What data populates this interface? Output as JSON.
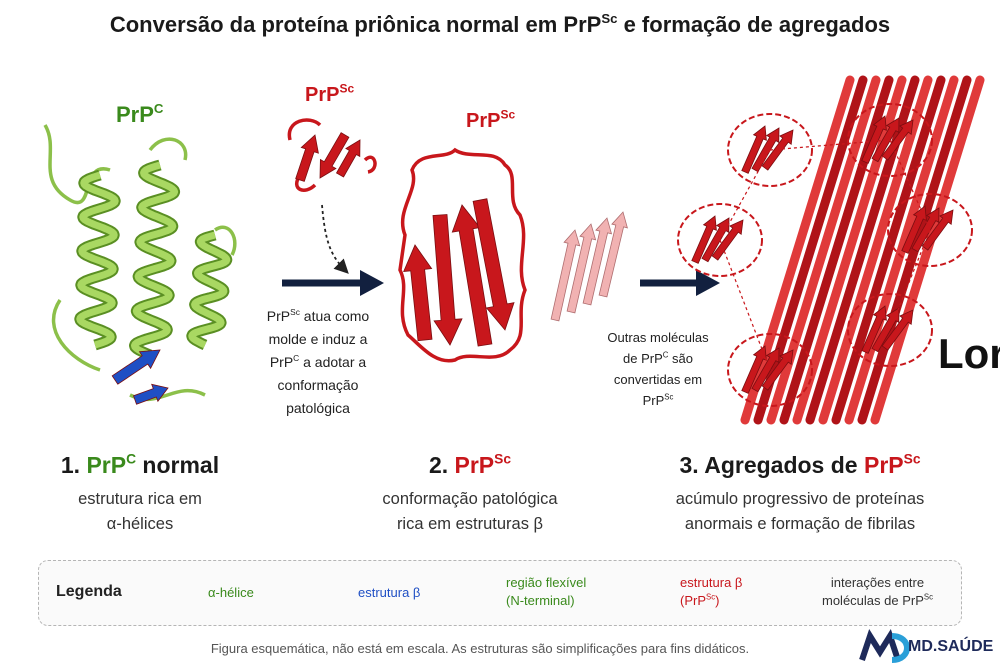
{
  "title": [
    "Conversão da proteína priônica normal em PrP",
    "Sc",
    " e formação de agregados"
  ],
  "labels": {
    "prpc": [
      "PrP",
      "C"
    ],
    "prpsc_small": [
      "PrP",
      "Sc"
    ],
    "prpsc": [
      "PrP",
      "Sc"
    ]
  },
  "note1": [
    [
      "PrP",
      "Sc",
      " atua como"
    ],
    [
      "molde e induz a"
    ],
    [
      "PrP",
      "C",
      " a adotar a"
    ],
    [
      "conformação"
    ],
    [
      "patológica"
    ]
  ],
  "note2": [
    [
      "Outras moléculas"
    ],
    [
      "de PrP",
      "C",
      " são"
    ],
    [
      "convertidas em"
    ],
    [
      "PrP",
      "Sc"
    ]
  ],
  "watermark": "Lore",
  "steps": [
    {
      "number": "1.",
      "name": [
        "PrP",
        "C",
        " normal"
      ],
      "description": [
        "estrutura rica em",
        "α-hélices"
      ]
    },
    {
      "number": "2.",
      "name": [
        "PrP",
        "Sc"
      ],
      "description": [
        "conformação patológica",
        "rica em estruturas β"
      ]
    },
    {
      "number": "3.",
      "name": [
        "Agregados de ",
        "PrP",
        "Sc"
      ],
      "description": [
        "acúmulo progressivo de proteínas",
        "anormais e formação de fibrilas"
      ]
    }
  ],
  "legend": {
    "title": "Legenda",
    "items": [
      [
        [
          "α-hélice"
        ]
      ],
      [
        [
          "estrutura β"
        ]
      ],
      [
        [
          "região flexível"
        ],
        [
          "(N-terminal)"
        ]
      ],
      [
        [
          "estrutura β"
        ],
        [
          "(PrP",
          "Sc",
          ")"
        ]
      ],
      [
        [
          "interações entre"
        ],
        [
          "moléculas de PrP",
          "Sc"
        ]
      ]
    ]
  },
  "footer": "Figura esquemática, não está em escala. As estruturas são simplificações para fins didáticos.",
  "logo": "MD.SAÚDE"
}
